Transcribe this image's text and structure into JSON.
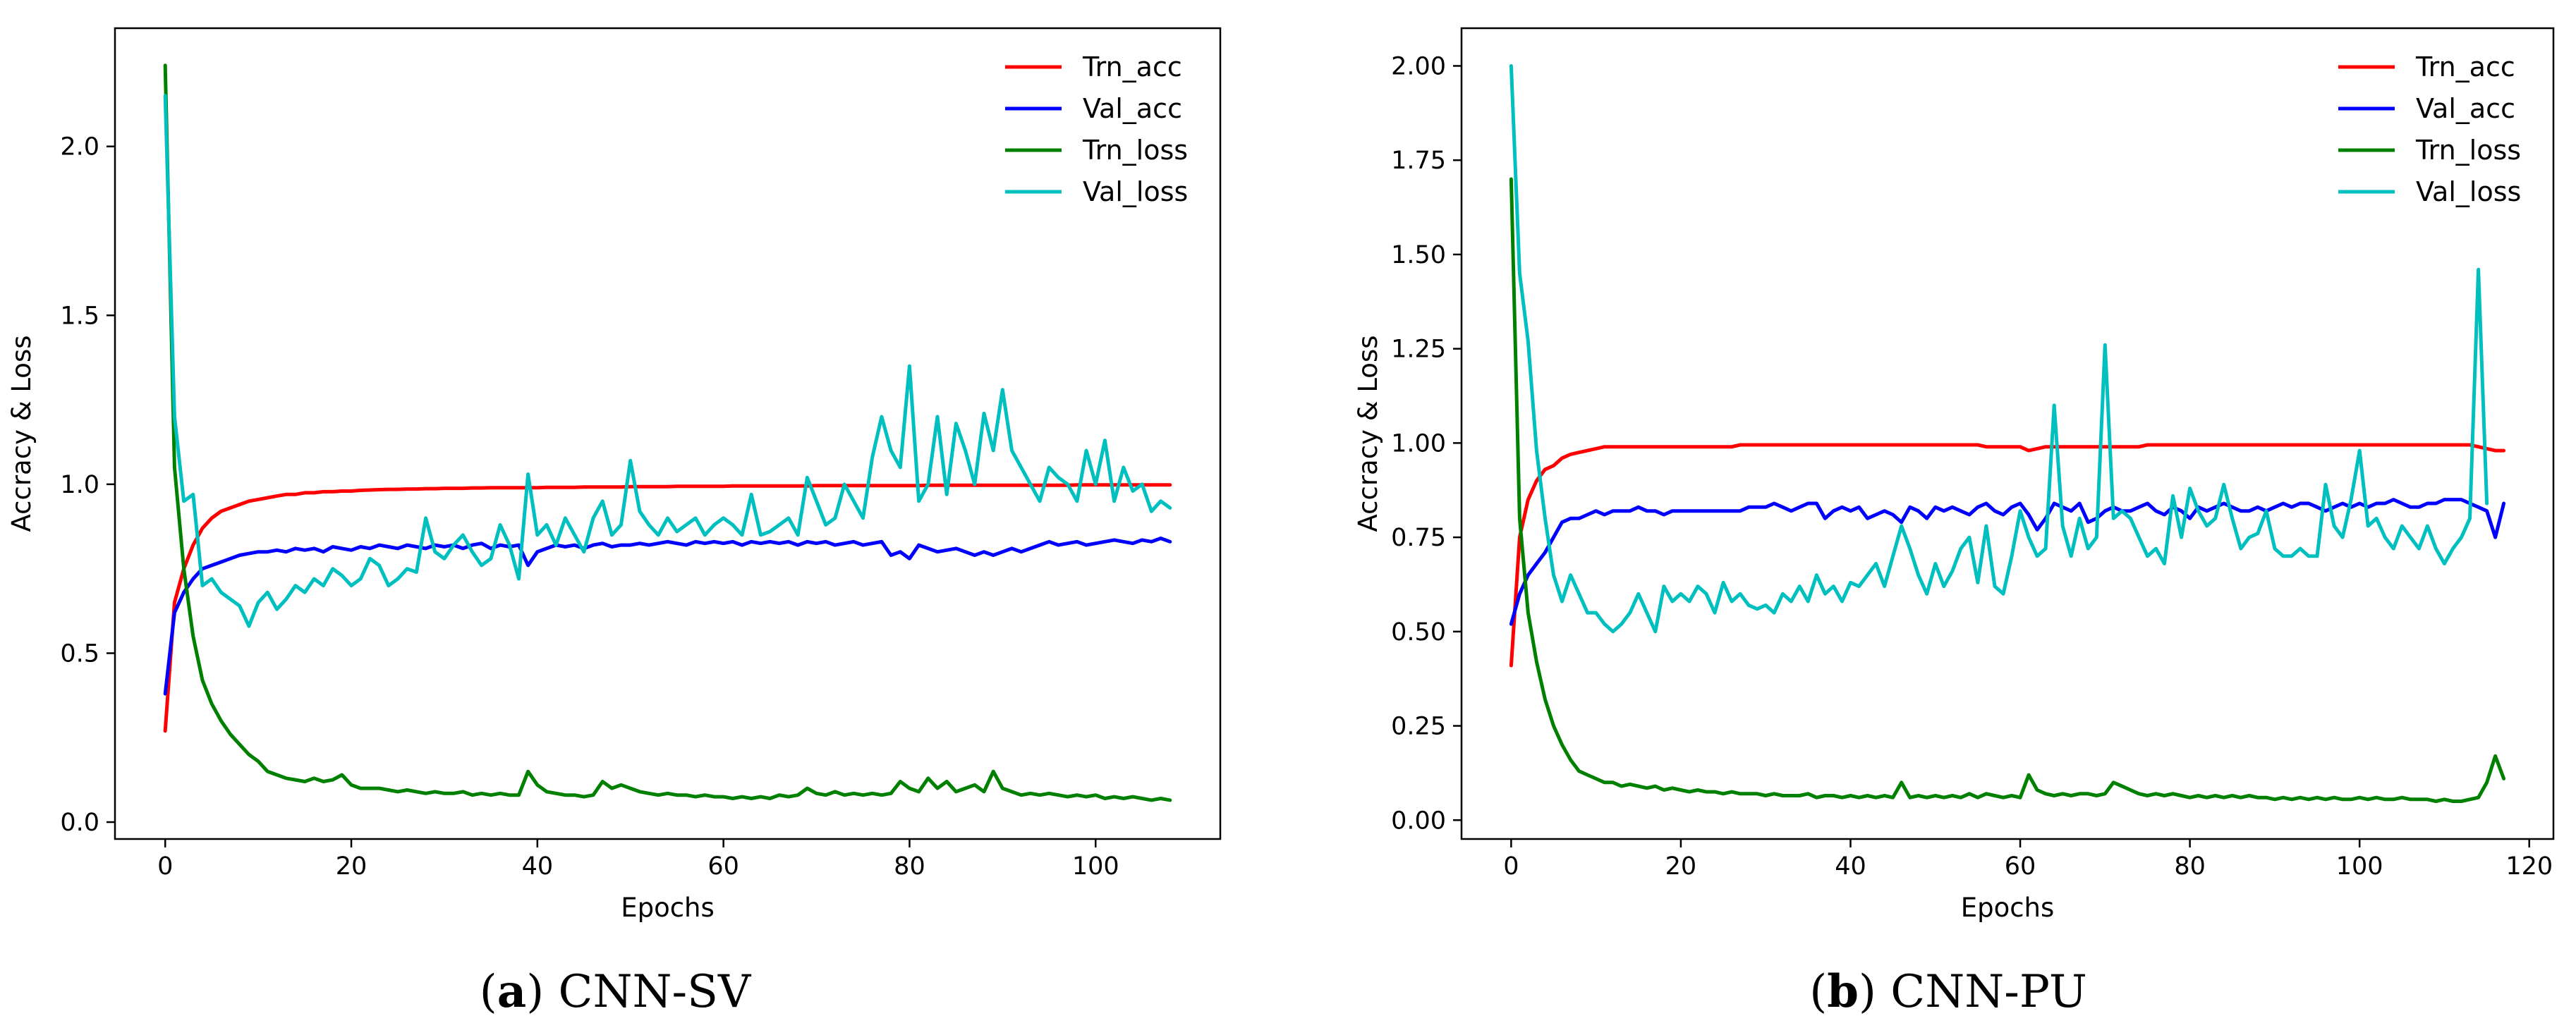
{
  "figure": {
    "panels": [
      {
        "caption_letter": "a",
        "caption_text": "CNN-SV"
      },
      {
        "caption_letter": "b",
        "caption_text": "CNN-PU"
      }
    ]
  },
  "chart_data": [
    {
      "type": "line",
      "title": "",
      "caption": "(a) CNN-SV",
      "xlabel": "Epochs",
      "ylabel": "Accracy & Loss",
      "xlim": [
        -5.4,
        113.4
      ],
      "ylim": [
        -0.05,
        2.35
      ],
      "xticks": [
        0,
        20,
        40,
        60,
        80,
        100
      ],
      "yticks": [
        0.0,
        0.5,
        1.0,
        1.5,
        2.0
      ],
      "ytick_labels": [
        "0.0",
        "0.5",
        "1.0",
        "1.5",
        "2.0"
      ],
      "grid": false,
      "legend_position": "top-right",
      "series": [
        {
          "name": "Trn_acc",
          "color": "#ff0000",
          "x_start": 0,
          "values": [
            0.27,
            0.65,
            0.75,
            0.82,
            0.87,
            0.9,
            0.92,
            0.93,
            0.94,
            0.95,
            0.955,
            0.96,
            0.965,
            0.97,
            0.97,
            0.975,
            0.975,
            0.978,
            0.978,
            0.98,
            0.98,
            0.982,
            0.983,
            0.984,
            0.985,
            0.985,
            0.986,
            0.986,
            0.987,
            0.987,
            0.988,
            0.988,
            0.988,
            0.989,
            0.989,
            0.99,
            0.99,
            0.99,
            0.99,
            0.99,
            0.99,
            0.991,
            0.991,
            0.991,
            0.991,
            0.992,
            0.992,
            0.992,
            0.992,
            0.992,
            0.993,
            0.993,
            0.993,
            0.993,
            0.993,
            0.994,
            0.994,
            0.994,
            0.994,
            0.994,
            0.994,
            0.995,
            0.995,
            0.995,
            0.995,
            0.995,
            0.995,
            0.995,
            0.995,
            0.995,
            0.996,
            0.996,
            0.996,
            0.996,
            0.996,
            0.996,
            0.996,
            0.996,
            0.996,
            0.996,
            0.996,
            0.996,
            0.997,
            0.997,
            0.997,
            0.997,
            0.997,
            0.997,
            0.997,
            0.997,
            0.997,
            0.997,
            0.997,
            0.997,
            0.997,
            0.997,
            0.997,
            0.997,
            0.998,
            0.998,
            0.998,
            0.998,
            0.998,
            0.998,
            0.998,
            0.998,
            0.998,
            0.998,
            0.998
          ]
        },
        {
          "name": "Val_acc",
          "color": "#0000ff",
          "x_start": 0,
          "values": [
            0.38,
            0.62,
            0.68,
            0.72,
            0.75,
            0.76,
            0.77,
            0.78,
            0.79,
            0.795,
            0.8,
            0.8,
            0.805,
            0.8,
            0.81,
            0.805,
            0.81,
            0.8,
            0.815,
            0.81,
            0.805,
            0.815,
            0.81,
            0.82,
            0.815,
            0.81,
            0.82,
            0.815,
            0.81,
            0.82,
            0.815,
            0.82,
            0.81,
            0.82,
            0.825,
            0.81,
            0.82,
            0.815,
            0.82,
            0.76,
            0.8,
            0.81,
            0.82,
            0.815,
            0.82,
            0.81,
            0.82,
            0.825,
            0.815,
            0.82,
            0.82,
            0.825,
            0.82,
            0.825,
            0.83,
            0.825,
            0.82,
            0.83,
            0.825,
            0.83,
            0.825,
            0.83,
            0.82,
            0.83,
            0.825,
            0.83,
            0.825,
            0.83,
            0.82,
            0.83,
            0.825,
            0.83,
            0.82,
            0.825,
            0.83,
            0.82,
            0.825,
            0.83,
            0.79,
            0.8,
            0.78,
            0.82,
            0.81,
            0.8,
            0.805,
            0.81,
            0.8,
            0.79,
            0.8,
            0.79,
            0.8,
            0.81,
            0.8,
            0.81,
            0.82,
            0.83,
            0.82,
            0.825,
            0.83,
            0.82,
            0.825,
            0.83,
            0.835,
            0.83,
            0.825,
            0.835,
            0.83,
            0.84,
            0.83
          ]
        },
        {
          "name": "Trn_loss",
          "color": "#008000",
          "x_start": 0,
          "values": [
            2.24,
            1.05,
            0.75,
            0.55,
            0.42,
            0.35,
            0.3,
            0.26,
            0.23,
            0.2,
            0.18,
            0.15,
            0.14,
            0.13,
            0.125,
            0.12,
            0.13,
            0.12,
            0.125,
            0.14,
            0.11,
            0.1,
            0.1,
            0.1,
            0.095,
            0.09,
            0.095,
            0.09,
            0.085,
            0.09,
            0.085,
            0.085,
            0.09,
            0.08,
            0.085,
            0.08,
            0.085,
            0.08,
            0.08,
            0.15,
            0.11,
            0.09,
            0.085,
            0.08,
            0.08,
            0.075,
            0.08,
            0.12,
            0.1,
            0.11,
            0.1,
            0.09,
            0.085,
            0.08,
            0.085,
            0.08,
            0.08,
            0.075,
            0.08,
            0.075,
            0.075,
            0.07,
            0.075,
            0.07,
            0.075,
            0.07,
            0.08,
            0.075,
            0.08,
            0.1,
            0.085,
            0.08,
            0.09,
            0.08,
            0.085,
            0.08,
            0.085,
            0.08,
            0.085,
            0.12,
            0.1,
            0.09,
            0.13,
            0.1,
            0.12,
            0.09,
            0.1,
            0.11,
            0.09,
            0.15,
            0.1,
            0.09,
            0.08,
            0.085,
            0.08,
            0.085,
            0.08,
            0.075,
            0.08,
            0.075,
            0.08,
            0.07,
            0.075,
            0.07,
            0.075,
            0.07,
            0.065,
            0.07,
            0.065
          ]
        },
        {
          "name": "Val_loss",
          "color": "#00bfbf",
          "x_start": 0,
          "values": [
            2.15,
            1.2,
            0.95,
            0.97,
            0.7,
            0.72,
            0.68,
            0.66,
            0.64,
            0.58,
            0.65,
            0.68,
            0.63,
            0.66,
            0.7,
            0.68,
            0.72,
            0.7,
            0.75,
            0.73,
            0.7,
            0.72,
            0.78,
            0.76,
            0.7,
            0.72,
            0.75,
            0.74,
            0.9,
            0.8,
            0.78,
            0.82,
            0.85,
            0.8,
            0.76,
            0.78,
            0.88,
            0.82,
            0.72,
            1.03,
            0.85,
            0.88,
            0.82,
            0.9,
            0.85,
            0.8,
            0.9,
            0.95,
            0.85,
            0.88,
            1.07,
            0.92,
            0.88,
            0.85,
            0.9,
            0.86,
            0.88,
            0.9,
            0.85,
            0.88,
            0.9,
            0.88,
            0.85,
            0.97,
            0.85,
            0.86,
            0.88,
            0.9,
            0.85,
            1.02,
            0.95,
            0.88,
            0.9,
            1.0,
            0.95,
            0.9,
            1.08,
            1.2,
            1.1,
            1.05,
            1.35,
            0.95,
            1.0,
            1.2,
            0.97,
            1.18,
            1.1,
            1.0,
            1.21,
            1.1,
            1.28,
            1.1,
            1.05,
            1.0,
            0.95,
            1.05,
            1.02,
            1.0,
            0.95,
            1.1,
            1.0,
            1.13,
            0.95,
            1.05,
            0.98,
            1.0,
            0.92,
            0.95,
            0.93
          ]
        }
      ]
    },
    {
      "type": "line",
      "title": "",
      "caption": "(b) CNN-PU",
      "xlabel": "Epochs",
      "ylabel": "Accracy & Loss",
      "xlim": [
        -5.85,
        122.85
      ],
      "ylim": [
        -0.05,
        2.1
      ],
      "xticks": [
        0,
        20,
        40,
        60,
        80,
        100,
        120
      ],
      "yticks": [
        0.0,
        0.25,
        0.5,
        0.75,
        1.0,
        1.25,
        1.5,
        1.75,
        2.0
      ],
      "ytick_labels": [
        "0.00",
        "0.25",
        "0.50",
        "0.75",
        "1.00",
        "1.25",
        "1.50",
        "1.75",
        "2.00"
      ],
      "grid": false,
      "legend_position": "top-right",
      "series": [
        {
          "name": "Trn_acc",
          "color": "#ff0000",
          "x_start": 0,
          "values": [
            0.41,
            0.75,
            0.85,
            0.9,
            0.93,
            0.94,
            0.96,
            0.97,
            0.975,
            0.98,
            0.985,
            0.99,
            0.99,
            0.99,
            0.99,
            0.99,
            0.99,
            0.99,
            0.99,
            0.99,
            0.99,
            0.99,
            0.99,
            0.99,
            0.99,
            0.99,
            0.99,
            0.995,
            0.995,
            0.995,
            0.995,
            0.995,
            0.995,
            0.995,
            0.995,
            0.995,
            0.995,
            0.995,
            0.995,
            0.995,
            0.995,
            0.995,
            0.995,
            0.995,
            0.995,
            0.995,
            0.995,
            0.995,
            0.995,
            0.995,
            0.995,
            0.995,
            0.995,
            0.995,
            0.995,
            0.995,
            0.99,
            0.99,
            0.99,
            0.99,
            0.99,
            0.98,
            0.985,
            0.99,
            0.99,
            0.99,
            0.99,
            0.99,
            0.99,
            0.99,
            0.99,
            0.99,
            0.99,
            0.99,
            0.99,
            0.995,
            0.995,
            0.995,
            0.995,
            0.995,
            0.995,
            0.995,
            0.995,
            0.995,
            0.995,
            0.995,
            0.995,
            0.995,
            0.995,
            0.995,
            0.995,
            0.995,
            0.995,
            0.995,
            0.995,
            0.995,
            0.995,
            0.995,
            0.995,
            0.995,
            0.995,
            0.995,
            0.995,
            0.995,
            0.995,
            0.995,
            0.995,
            0.995,
            0.995,
            0.995,
            0.995,
            0.995,
            0.995,
            0.995,
            0.99,
            0.985,
            0.98,
            0.98
          ]
        },
        {
          "name": "Val_acc",
          "color": "#0000ff",
          "x_start": 0,
          "values": [
            0.52,
            0.6,
            0.65,
            0.68,
            0.71,
            0.75,
            0.79,
            0.8,
            0.8,
            0.81,
            0.82,
            0.81,
            0.82,
            0.82,
            0.82,
            0.83,
            0.82,
            0.82,
            0.81,
            0.82,
            0.82,
            0.82,
            0.82,
            0.82,
            0.82,
            0.82,
            0.82,
            0.82,
            0.83,
            0.83,
            0.83,
            0.84,
            0.83,
            0.82,
            0.83,
            0.84,
            0.84,
            0.8,
            0.82,
            0.83,
            0.82,
            0.83,
            0.8,
            0.81,
            0.82,
            0.81,
            0.79,
            0.83,
            0.82,
            0.8,
            0.83,
            0.82,
            0.83,
            0.82,
            0.81,
            0.83,
            0.84,
            0.82,
            0.81,
            0.83,
            0.84,
            0.81,
            0.77,
            0.8,
            0.84,
            0.83,
            0.82,
            0.84,
            0.79,
            0.8,
            0.82,
            0.83,
            0.82,
            0.82,
            0.83,
            0.84,
            0.82,
            0.81,
            0.83,
            0.82,
            0.8,
            0.83,
            0.82,
            0.83,
            0.84,
            0.83,
            0.82,
            0.82,
            0.83,
            0.82,
            0.83,
            0.84,
            0.83,
            0.84,
            0.84,
            0.83,
            0.82,
            0.83,
            0.84,
            0.83,
            0.84,
            0.83,
            0.84,
            0.84,
            0.85,
            0.84,
            0.83,
            0.83,
            0.84,
            0.84,
            0.85,
            0.85,
            0.85,
            0.84,
            0.83,
            0.82,
            0.75,
            0.84
          ]
        },
        {
          "name": "Trn_loss",
          "color": "#008000",
          "x_start": 0,
          "values": [
            1.7,
            0.8,
            0.55,
            0.42,
            0.32,
            0.25,
            0.2,
            0.16,
            0.13,
            0.12,
            0.11,
            0.1,
            0.1,
            0.09,
            0.095,
            0.09,
            0.085,
            0.09,
            0.08,
            0.085,
            0.08,
            0.075,
            0.08,
            0.075,
            0.075,
            0.07,
            0.075,
            0.07,
            0.07,
            0.07,
            0.065,
            0.07,
            0.065,
            0.065,
            0.065,
            0.07,
            0.06,
            0.065,
            0.065,
            0.06,
            0.065,
            0.06,
            0.065,
            0.06,
            0.065,
            0.06,
            0.1,
            0.06,
            0.065,
            0.06,
            0.065,
            0.06,
            0.065,
            0.06,
            0.07,
            0.06,
            0.07,
            0.065,
            0.06,
            0.065,
            0.06,
            0.12,
            0.08,
            0.07,
            0.065,
            0.07,
            0.065,
            0.07,
            0.07,
            0.065,
            0.07,
            0.1,
            0.09,
            0.08,
            0.07,
            0.065,
            0.07,
            0.065,
            0.07,
            0.065,
            0.06,
            0.065,
            0.06,
            0.065,
            0.06,
            0.065,
            0.06,
            0.065,
            0.06,
            0.06,
            0.055,
            0.06,
            0.055,
            0.06,
            0.055,
            0.06,
            0.055,
            0.06,
            0.055,
            0.055,
            0.06,
            0.055,
            0.06,
            0.055,
            0.055,
            0.06,
            0.055,
            0.055,
            0.055,
            0.05,
            0.055,
            0.05,
            0.05,
            0.055,
            0.06,
            0.1,
            0.17,
            0.11
          ]
        },
        {
          "name": "Val_loss",
          "color": "#00bfbf",
          "x_start": 0,
          "values": [
            2.0,
            1.45,
            1.27,
            0.98,
            0.8,
            0.65,
            0.58,
            0.65,
            0.6,
            0.55,
            0.55,
            0.52,
            0.5,
            0.52,
            0.55,
            0.6,
            0.55,
            0.5,
            0.62,
            0.58,
            0.6,
            0.58,
            0.62,
            0.6,
            0.55,
            0.63,
            0.58,
            0.6,
            0.57,
            0.56,
            0.57,
            0.55,
            0.6,
            0.58,
            0.62,
            0.58,
            0.65,
            0.6,
            0.62,
            0.58,
            0.63,
            0.62,
            0.65,
            0.68,
            0.62,
            0.7,
            0.78,
            0.72,
            0.65,
            0.6,
            0.68,
            0.62,
            0.66,
            0.72,
            0.75,
            0.63,
            0.78,
            0.62,
            0.6,
            0.7,
            0.82,
            0.75,
            0.7,
            0.72,
            1.1,
            0.78,
            0.7,
            0.8,
            0.72,
            0.75,
            1.26,
            0.8,
            0.82,
            0.8,
            0.75,
            0.7,
            0.72,
            0.68,
            0.86,
            0.75,
            0.88,
            0.82,
            0.78,
            0.8,
            0.89,
            0.8,
            0.72,
            0.75,
            0.76,
            0.82,
            0.72,
            0.7,
            0.7,
            0.72,
            0.7,
            0.7,
            0.89,
            0.78,
            0.75,
            0.85,
            0.98,
            0.78,
            0.8,
            0.75,
            0.72,
            0.78,
            0.75,
            0.72,
            0.78,
            0.72,
            0.68,
            0.72,
            0.75,
            0.8,
            1.46,
            0.84
          ]
        }
      ]
    }
  ]
}
